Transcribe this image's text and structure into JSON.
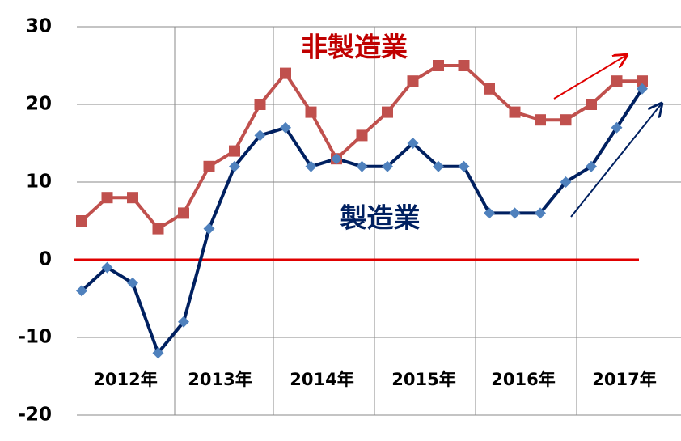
{
  "chart_data": {
    "type": "line",
    "x_group_labels": [
      "2012年",
      "2013年",
      "2014年",
      "2015年",
      "2016年",
      "2017年"
    ],
    "series": [
      {
        "name": "非製造業",
        "color": "#c0504d",
        "marker": "square",
        "values": [
          5,
          8,
          8,
          4,
          6,
          12,
          14,
          20,
          24,
          19,
          13,
          16,
          19,
          23,
          25,
          25,
          22,
          19,
          18,
          18,
          20,
          23,
          23
        ]
      },
      {
        "name": "製造業",
        "color": "#002060",
        "marker_color": "#4f81bd",
        "marker": "diamond",
        "values": [
          -4,
          -1,
          -3,
          -12,
          -8,
          4,
          12,
          16,
          17,
          12,
          13,
          12,
          12,
          15,
          12,
          12,
          6,
          6,
          6,
          10,
          12,
          17,
          22
        ]
      }
    ],
    "ylim": [
      -20,
      30
    ],
    "yticks": [
      30,
      20,
      10,
      0,
      -10,
      -20
    ],
    "grid": true,
    "zero_line_color": "#e00000"
  }
}
